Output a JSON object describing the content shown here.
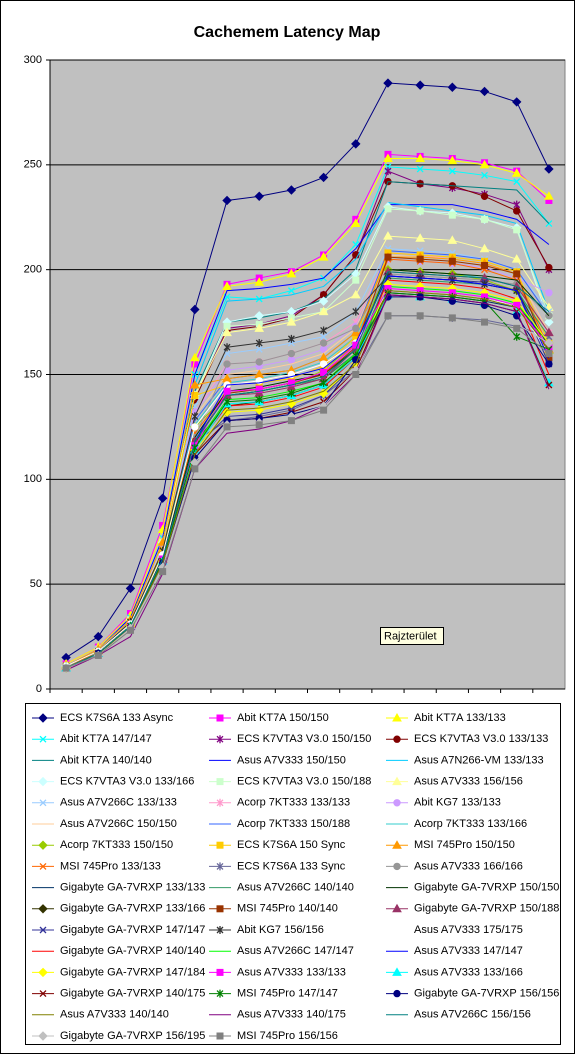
{
  "chart_data": {
    "type": "line",
    "title": "Cachemem Latency Map",
    "annotation": "Rajzterület",
    "categories": [
      null,
      null,
      null,
      null,
      null,
      null,
      null,
      null,
      null,
      null,
      null,
      null,
      null,
      null,
      null,
      null
    ],
    "ylim": [
      0,
      300
    ],
    "yticks": [
      0,
      50,
      100,
      150,
      200,
      250,
      300
    ],
    "grid": true,
    "series": [
      {
        "name": "ECS K7S6A 133 Async",
        "color": "#000080",
        "marker": "diamond",
        "values": [
          15,
          25,
          48,
          91,
          181,
          233,
          235,
          238,
          244,
          260,
          289,
          288,
          287,
          285,
          280,
          248
        ]
      },
      {
        "name": "Abit KT7A 150/150",
        "color": "#ff00ff",
        "marker": "square",
        "values": [
          12,
          20,
          36,
          78,
          155,
          193,
          196,
          199,
          207,
          224,
          255,
          254,
          253,
          251,
          247,
          233
        ]
      },
      {
        "name": "Abit KT7A 133/133",
        "color": "#ffff00",
        "marker": "triangle",
        "values": [
          12,
          20,
          35,
          76,
          158,
          192,
          194,
          198,
          206,
          222,
          253,
          253,
          252,
          250,
          246,
          235
        ]
      },
      {
        "name": "Abit KT7A 147/147",
        "color": "#00ffff",
        "marker": "x",
        "values": [
          11,
          19,
          34,
          72,
          150,
          187,
          186,
          190,
          196,
          212,
          249,
          248,
          247,
          245,
          242,
          222
        ]
      },
      {
        "name": "ECS K7VTA3 V3.0 150/150",
        "color": "#800080",
        "marker": "star",
        "values": [
          11,
          19,
          33,
          70,
          140,
          172,
          174,
          178,
          188,
          207,
          247,
          241,
          239,
          236,
          231,
          200
        ]
      },
      {
        "name": "ECS K7VTA3 V3.0 133/133",
        "color": "#800000",
        "marker": "circle",
        "values": [
          11,
          19,
          33,
          70,
          138,
          171,
          173,
          177,
          188,
          207,
          242,
          241,
          240,
          235,
          228,
          201
        ]
      },
      {
        "name": "Abit KT7A 140/140",
        "color": "#008080",
        "marker": "none",
        "values": [
          11,
          19,
          33,
          70,
          142,
          175,
          177,
          180,
          186,
          200,
          242,
          241,
          240,
          239,
          238,
          222
        ]
      },
      {
        "name": "Asus A7V333 150/150",
        "color": "#0000ff",
        "marker": "none",
        "values": [
          11,
          19,
          34,
          72,
          150,
          190,
          191,
          193,
          196,
          210,
          231,
          231,
          231,
          228,
          224,
          212
        ]
      },
      {
        "name": "Asus A7N266-VM 133/133",
        "color": "#00ccff",
        "marker": "none",
        "values": [
          10,
          18,
          33,
          70,
          145,
          185,
          186,
          188,
          192,
          205,
          232,
          230,
          228,
          226,
          222,
          180
        ]
      },
      {
        "name": "ECS K7VTA3 V3.0 133/166",
        "color": "#ccffff",
        "marker": "diamond",
        "values": [
          11,
          19,
          33,
          70,
          140,
          175,
          178,
          180,
          185,
          198,
          230,
          228,
          227,
          224,
          220,
          175
        ]
      },
      {
        "name": "ECS K7VTA3 V3.0 150/188",
        "color": "#ccffcc",
        "marker": "square",
        "values": [
          11,
          19,
          33,
          70,
          140,
          173,
          174,
          177,
          180,
          195,
          229,
          228,
          226,
          224,
          219,
          178
        ]
      },
      {
        "name": "Asus A7V333 156/156",
        "color": "#ffff99",
        "marker": "triangle",
        "values": [
          11,
          19,
          33,
          70,
          140,
          170,
          172,
          175,
          180,
          188,
          216,
          215,
          214,
          210,
          205,
          182
        ]
      },
      {
        "name": "Asus A7V266C 133/133",
        "color": "#99ccff",
        "marker": "x",
        "values": [
          11,
          19,
          32,
          68,
          135,
          160,
          162,
          165,
          168,
          180,
          210,
          209,
          208,
          205,
          200,
          180
        ]
      },
      {
        "name": "Acorp 7KT333 133/133",
        "color": "#ff99cc",
        "marker": "star",
        "values": [
          11,
          18,
          32,
          67,
          132,
          155,
          156,
          160,
          165,
          175,
          208,
          207,
          205,
          203,
          198,
          170
        ]
      },
      {
        "name": "Abit KG7 133/133",
        "color": "#cc99ff",
        "marker": "circle",
        "values": [
          11,
          18,
          32,
          67,
          132,
          152,
          154,
          157,
          162,
          173,
          205,
          204,
          203,
          201,
          196,
          189
        ]
      },
      {
        "name": "Asus A7V266C 150/150",
        "color": "#ffcc99",
        "marker": "none",
        "values": [
          11,
          18,
          32,
          67,
          130,
          150,
          152,
          155,
          160,
          172,
          207,
          206,
          205,
          203,
          198,
          170
        ]
      },
      {
        "name": "Acorp 7KT333 150/188",
        "color": "#3366ff",
        "marker": "none",
        "values": [
          11,
          18,
          31,
          66,
          128,
          148,
          150,
          152,
          158,
          170,
          209,
          208,
          207,
          205,
          200,
          178
        ]
      },
      {
        "name": "Acorp 7KT333 133/166",
        "color": "#33cccc",
        "marker": "none",
        "values": [
          10,
          18,
          31,
          65,
          126,
          146,
          148,
          151,
          156,
          168,
          200,
          199,
          198,
          196,
          192,
          160
        ]
      },
      {
        "name": "Acorp 7KT333 150/150",
        "color": "#99cc00",
        "marker": "diamond",
        "values": [
          10,
          18,
          31,
          65,
          125,
          140,
          142,
          145,
          152,
          165,
          200,
          199,
          198,
          195,
          190,
          160
        ]
      },
      {
        "name": "ECS K7S6A 150 Sync",
        "color": "#ffcc00",
        "marker": "square",
        "values": [
          11,
          18,
          32,
          66,
          140,
          145,
          146,
          148,
          154,
          168,
          208,
          207,
          206,
          204,
          199,
          165
        ]
      },
      {
        "name": "MSI 745Pro 150/150",
        "color": "#ff9900",
        "marker": "triangle",
        "values": [
          11,
          19,
          33,
          70,
          145,
          148,
          150,
          152,
          158,
          170,
          206,
          206,
          205,
          203,
          198,
          162
        ]
      },
      {
        "name": "MSI 745Pro 133/133",
        "color": "#ff6600",
        "marker": "x",
        "values": [
          10,
          18,
          31,
          64,
          122,
          142,
          143,
          146,
          150,
          165,
          205,
          204,
          203,
          200,
          195,
          163
        ]
      },
      {
        "name": "ECS K7S6A 133 Sync",
        "color": "#666699",
        "marker": "star",
        "values": [
          10,
          17,
          30,
          62,
          118,
          128,
          130,
          133,
          140,
          152,
          178,
          178,
          177,
          176,
          173,
          168
        ]
      },
      {
        "name": "Asus A7V333 166/166",
        "color": "#969696",
        "marker": "circle",
        "values": [
          10,
          17,
          30,
          63,
          120,
          155,
          156,
          160,
          165,
          172,
          198,
          197,
          196,
          195,
          193,
          178
        ]
      },
      {
        "name": "Gigabyte GA-7VRXP 133/133",
        "color": "#003366",
        "marker": "none",
        "values": [
          10,
          17,
          30,
          63,
          118,
          140,
          142,
          145,
          148,
          160,
          189,
          188,
          187,
          185,
          182,
          162
        ]
      },
      {
        "name": "Asus A7V266C 140/140",
        "color": "#339966",
        "marker": "none",
        "values": [
          10,
          17,
          30,
          63,
          118,
          140,
          142,
          145,
          148,
          160,
          196,
          195,
          194,
          193,
          190,
          168
        ]
      },
      {
        "name": "Gigabyte GA-7VRXP 150/150",
        "color": "#003300",
        "marker": "none",
        "values": [
          10,
          17,
          30,
          63,
          120,
          142,
          144,
          147,
          150,
          162,
          200,
          199,
          198,
          197,
          195,
          178
        ]
      },
      {
        "name": "Gigabyte GA-7VRXP 133/166",
        "color": "#333300",
        "marker": "diamond",
        "values": [
          10,
          17,
          30,
          62,
          118,
          135,
          137,
          140,
          145,
          158,
          190,
          189,
          188,
          186,
          183,
          165
        ]
      },
      {
        "name": "MSI 745Pro 140/140",
        "color": "#993300",
        "marker": "square",
        "values": [
          10,
          17,
          30,
          62,
          118,
          141,
          143,
          146,
          150,
          163,
          206,
          205,
          204,
          202,
          198,
          158
        ]
      },
      {
        "name": "Gigabyte GA-7VRXP 150/188",
        "color": "#993366",
        "marker": "triangle",
        "values": [
          10,
          17,
          30,
          62,
          118,
          140,
          141,
          144,
          148,
          162,
          199,
          198,
          197,
          196,
          192,
          170
        ]
      },
      {
        "name": "Gigabyte GA-7VRXP 147/147",
        "color": "#333399",
        "marker": "x",
        "values": [
          10,
          17,
          29,
          61,
          115,
          130,
          131,
          134,
          140,
          155,
          197,
          196,
          195,
          194,
          190,
          155
        ]
      },
      {
        "name": "Abit KG7 156/156",
        "color": "#333333",
        "marker": "star",
        "values": [
          11,
          18,
          32,
          66,
          130,
          163,
          165,
          167,
          171,
          180,
          197,
          196,
          195,
          193,
          190,
          163
        ]
      },
      {
        "name": "Asus A7V333 175/175",
        "color": "#ffffff",
        "marker": "circle",
        "values": [
          11,
          18,
          31,
          64,
          125,
          145,
          147,
          150,
          155,
          165,
          190,
          189,
          188,
          186,
          183,
          160
        ]
      },
      {
        "name": "Gigabyte GA-7VRXP 140/140",
        "color": "#ff0000",
        "marker": "none",
        "values": [
          10,
          17,
          30,
          62,
          115,
          135,
          136,
          139,
          144,
          158,
          195,
          194,
          193,
          191,
          186,
          150
        ]
      },
      {
        "name": "Asus A7V266C 147/147",
        "color": "#00ff00",
        "marker": "none",
        "values": [
          10,
          17,
          30,
          62,
          116,
          138,
          139,
          142,
          146,
          160,
          192,
          191,
          190,
          188,
          184,
          165
        ]
      },
      {
        "name": "Asus A7V333 147/147",
        "color": "#0000ff",
        "marker": "none",
        "values": [
          10,
          17,
          30,
          62,
          118,
          145,
          146,
          149,
          153,
          165,
          197,
          196,
          195,
          193,
          190,
          158
        ]
      },
      {
        "name": "Gigabyte GA-7VRXP 147/184",
        "color": "#ffff00",
        "marker": "diamond",
        "values": [
          10,
          17,
          30,
          61,
          114,
          132,
          133,
          136,
          141,
          155,
          193,
          192,
          191,
          189,
          185,
          165
        ]
      },
      {
        "name": "Asus A7V333 133/133",
        "color": "#ff00ff",
        "marker": "square",
        "values": [
          10,
          17,
          30,
          62,
          116,
          142,
          143,
          146,
          151,
          164,
          191,
          190,
          189,
          187,
          183,
          163
        ]
      },
      {
        "name": "Asus A7V333 133/166",
        "color": "#00ffff",
        "marker": "triangle",
        "values": [
          10,
          17,
          30,
          61,
          114,
          136,
          137,
          140,
          145,
          158,
          188,
          187,
          186,
          184,
          180,
          146
        ]
      },
      {
        "name": "Gigabyte GA-7VRXP 140/175",
        "color": "#800000",
        "marker": "x",
        "values": [
          10,
          17,
          29,
          60,
          112,
          128,
          129,
          132,
          137,
          152,
          188,
          187,
          186,
          184,
          180,
          145
        ]
      },
      {
        "name": "MSI 745Pro 147/147",
        "color": "#008000",
        "marker": "star",
        "values": [
          10,
          17,
          30,
          61,
          115,
          137,
          138,
          141,
          146,
          159,
          189,
          188,
          187,
          185,
          168,
          162
        ]
      },
      {
        "name": "Gigabyte GA-7VRXP 156/156",
        "color": "#000080",
        "marker": "circle",
        "values": [
          10,
          17,
          29,
          60,
          110,
          128,
          129,
          131,
          135,
          157,
          187,
          187,
          185,
          183,
          178,
          155
        ]
      },
      {
        "name": "Asus A7V333 140/140",
        "color": "#808000",
        "marker": "none",
        "values": [
          10,
          17,
          29,
          60,
          112,
          133,
          134,
          137,
          142,
          155,
          190,
          189,
          188,
          186,
          182,
          162
        ]
      },
      {
        "name": "Asus A7V333 140/175",
        "color": "#800080",
        "marker": "none",
        "values": [
          9,
          16,
          25,
          55,
          105,
          122,
          124,
          128,
          135,
          150,
          188,
          187,
          186,
          184,
          180,
          143
        ]
      },
      {
        "name": "Asus A7V266C 156/156",
        "color": "#008080",
        "marker": "none",
        "values": [
          10,
          17,
          30,
          62,
          118,
          140,
          142,
          145,
          149,
          162,
          199,
          198,
          197,
          196,
          192,
          180
        ]
      },
      {
        "name": "Gigabyte GA-7VRXP 156/195",
        "color": "#c0c0c0",
        "marker": "diamond",
        "values": [
          10,
          16,
          29,
          58,
          108,
          126,
          127,
          130,
          135,
          152,
          180,
          180,
          179,
          177,
          174,
          165
        ]
      },
      {
        "name": "MSI 745Pro 156/156",
        "color": "#808080",
        "marker": "square",
        "values": [
          10,
          16,
          28,
          56,
          105,
          125,
          126,
          128,
          133,
          150,
          178,
          178,
          177,
          175,
          172,
          160
        ]
      }
    ]
  }
}
